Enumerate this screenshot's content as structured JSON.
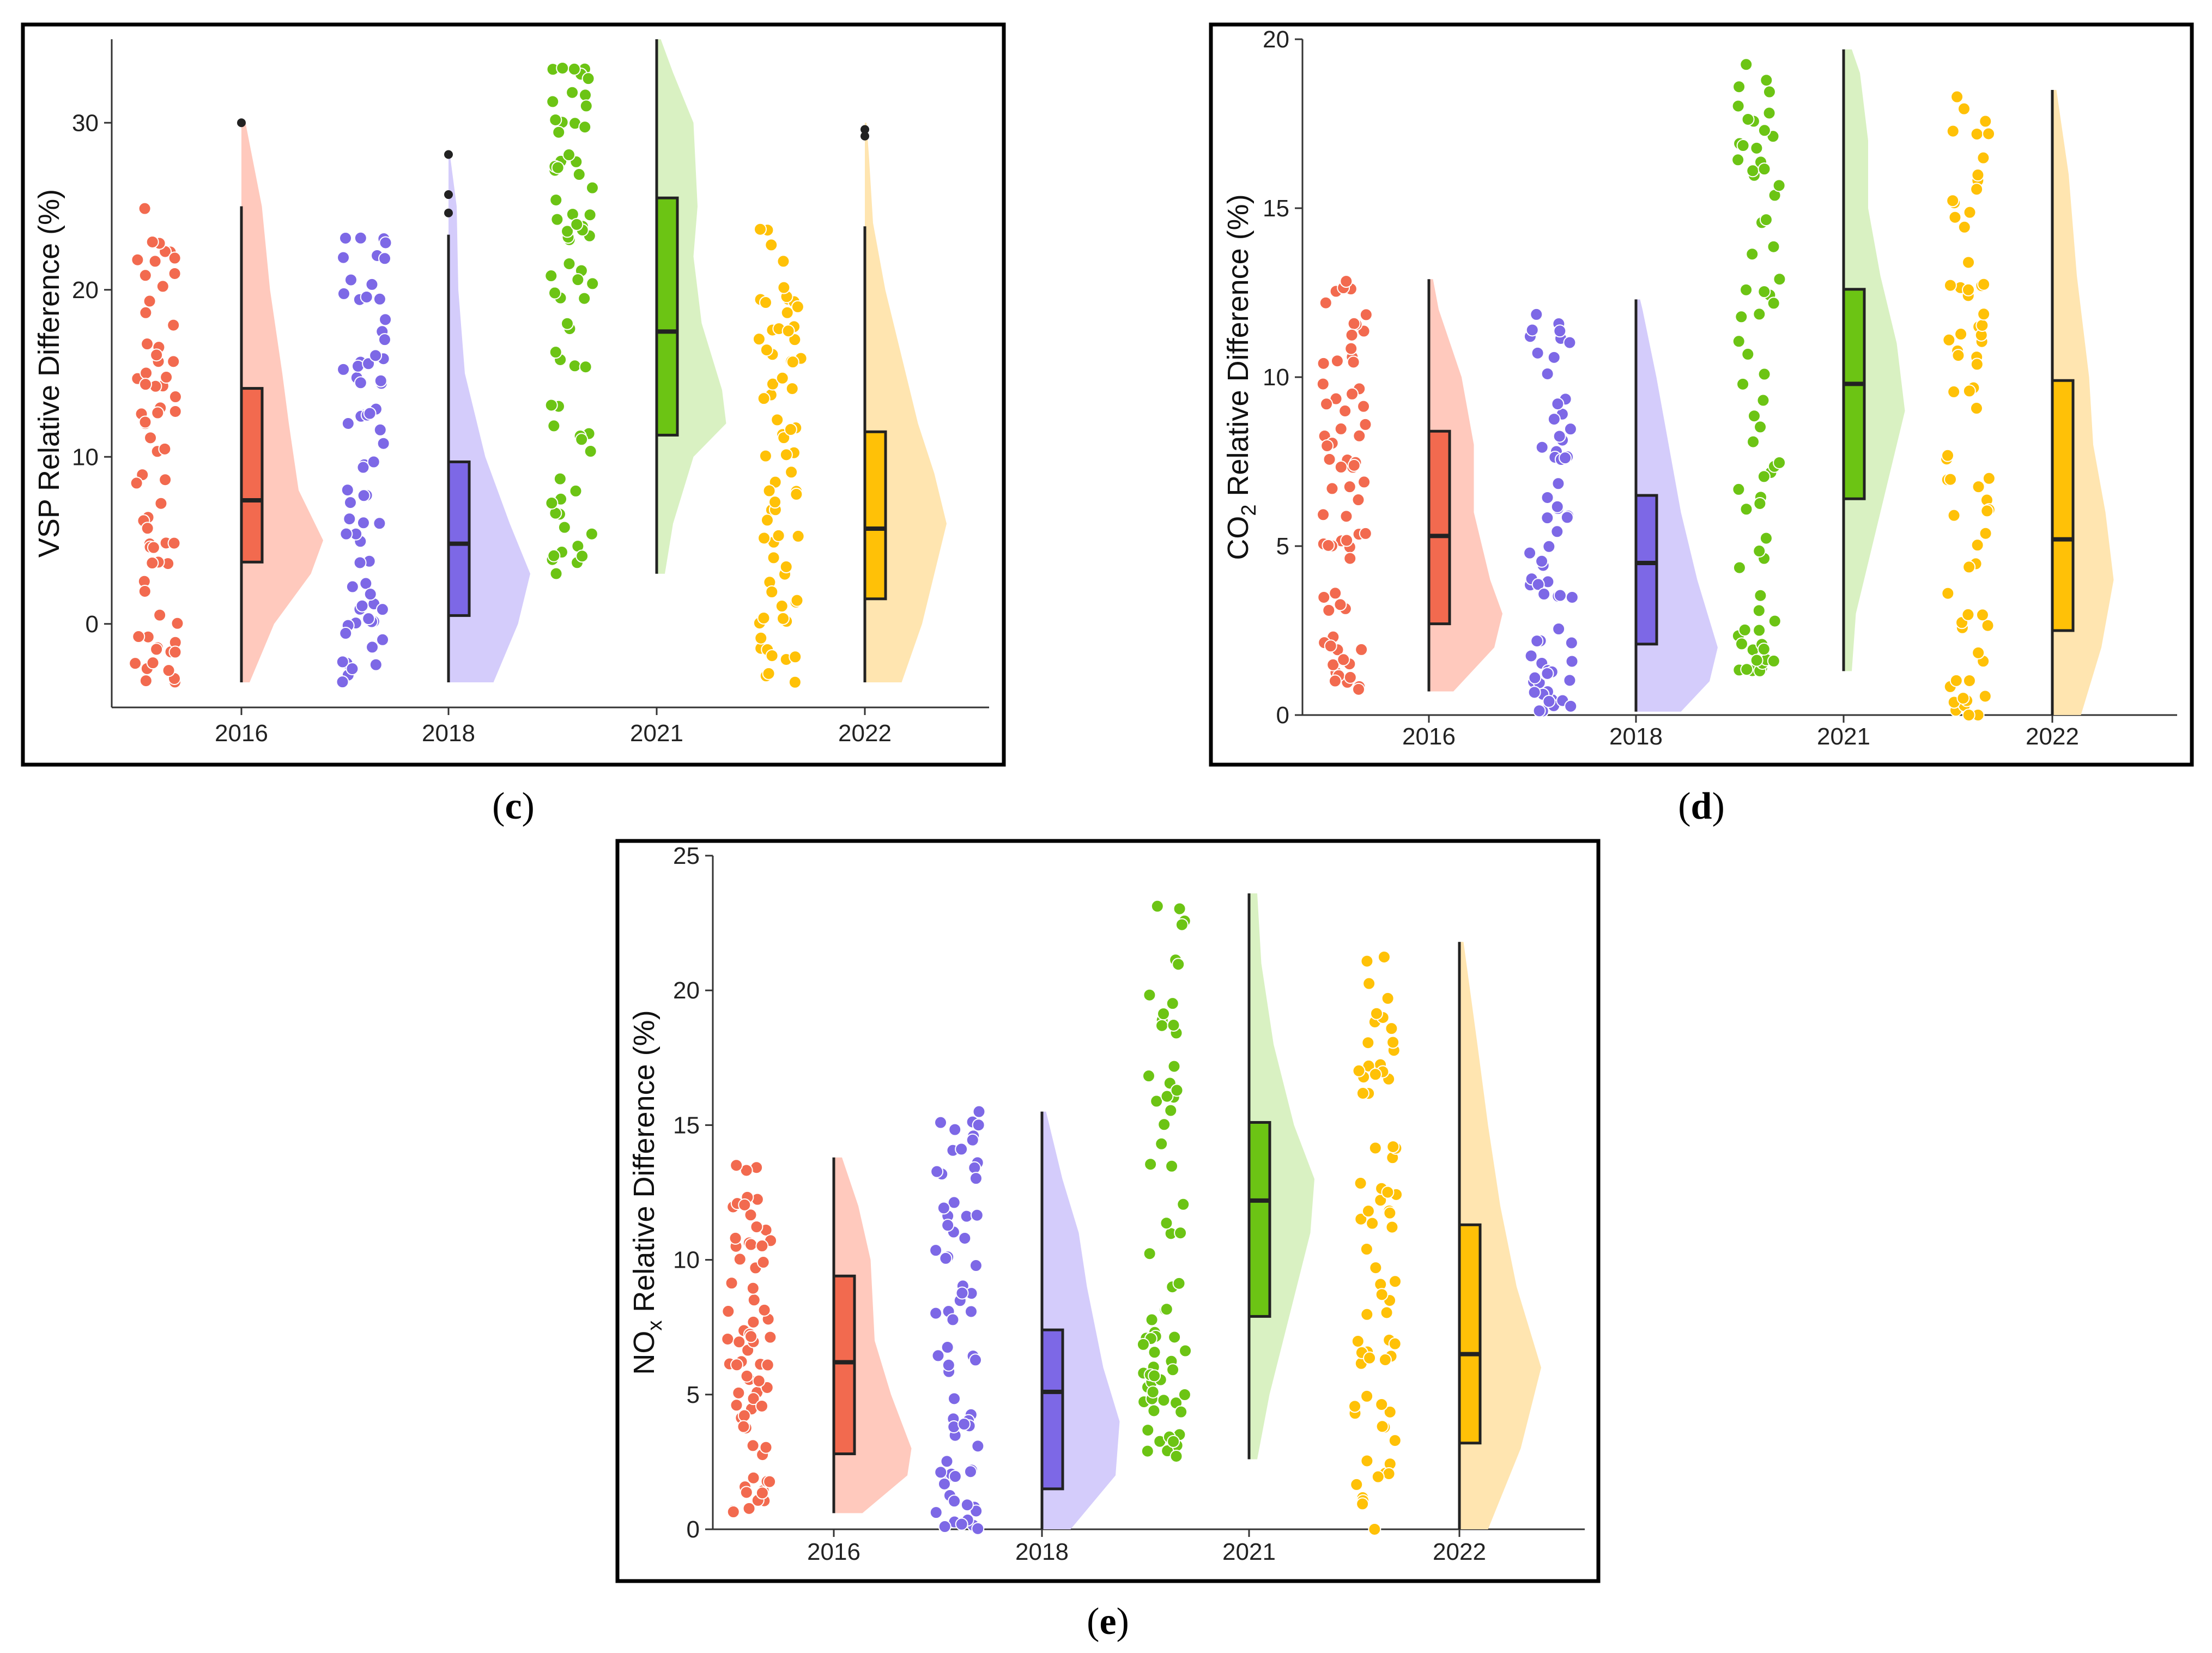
{
  "colors": {
    "2016": "#f26a4f",
    "2018": "#7d68e6",
    "2021": "#6cc414",
    "2022": "#ffc107",
    "2016_light": "#ffc9bd",
    "2018_light": "#d4ccfb",
    "2021_light": "#d9f1c2",
    "2022_light": "#ffe5b0"
  },
  "chart_data": [
    {
      "id": "c",
      "panel_label": "c",
      "type": "raincloud",
      "ylabel": "VSP Relative Difference (%)",
      "ylim": [
        -5,
        35
      ],
      "yticks": [
        0,
        10,
        20,
        30
      ],
      "categories": [
        "2016",
        "2018",
        "2021",
        "2022"
      ],
      "series": [
        {
          "name": "2016",
          "min": -3.5,
          "q1": 3.7,
          "median": 7.4,
          "q3": 14.1,
          "max": 25,
          "outliers": [
            30
          ],
          "density": [
            [
              -3.5,
              0.1
            ],
            [
              0,
              0.4
            ],
            [
              3,
              0.85
            ],
            [
              5,
              1.0
            ],
            [
              8,
              0.7
            ],
            [
              12,
              0.58
            ],
            [
              15,
              0.5
            ],
            [
              20,
              0.35
            ],
            [
              25,
              0.25
            ],
            [
              30,
              0.05
            ]
          ]
        },
        {
          "name": "2018",
          "min": -3.5,
          "q1": 0.5,
          "median": 4.8,
          "q3": 9.7,
          "max": 23.3,
          "outliers": [
            24.6,
            25.7,
            28.1
          ],
          "density": [
            [
              -3.5,
              0.55
            ],
            [
              0,
              0.85
            ],
            [
              3,
              1.0
            ],
            [
              6,
              0.75
            ],
            [
              10,
              0.45
            ],
            [
              15,
              0.2
            ],
            [
              20,
              0.12
            ],
            [
              25,
              0.1
            ],
            [
              28,
              0.02
            ]
          ]
        },
        {
          "name": "2021",
          "min": 3,
          "q1": 11.3,
          "median": 17.5,
          "q3": 25.5,
          "max": 35,
          "outliers": [],
          "density": [
            [
              3,
              0.1
            ],
            [
              6,
              0.2
            ],
            [
              10,
              0.45
            ],
            [
              12,
              0.85
            ],
            [
              14,
              0.8
            ],
            [
              18,
              0.55
            ],
            [
              22,
              0.45
            ],
            [
              25,
              0.5
            ],
            [
              30,
              0.45
            ],
            [
              33,
              0.2
            ],
            [
              35,
              0.05
            ]
          ]
        },
        {
          "name": "2022",
          "min": -3.5,
          "q1": 1.5,
          "median": 5.7,
          "q3": 11.5,
          "max": 23.8,
          "outliers": [
            29.2,
            29.6
          ],
          "density": [
            [
              -3.5,
              0.45
            ],
            [
              0,
              0.7
            ],
            [
              3,
              0.85
            ],
            [
              6,
              1.0
            ],
            [
              9,
              0.85
            ],
            [
              12,
              0.65
            ],
            [
              16,
              0.45
            ],
            [
              20,
              0.25
            ],
            [
              24,
              0.1
            ],
            [
              28,
              0.05
            ],
            [
              30,
              0.02
            ]
          ]
        }
      ]
    },
    {
      "id": "d",
      "panel_label": "d",
      "type": "raincloud",
      "ylabel_main": "CO",
      "ylabel_sub": "2",
      "ylabel_rest": " Relative Difference (%)",
      "ylim": [
        0,
        20
      ],
      "yticks": [
        0,
        5,
        10,
        15,
        20
      ],
      "categories": [
        "2016",
        "2018",
        "2021",
        "2022"
      ],
      "series": [
        {
          "name": "2016",
          "min": 0.7,
          "q1": 2.7,
          "median": 5.3,
          "q3": 8.4,
          "max": 12.9,
          "outliers": [],
          "density": [
            [
              0.7,
              0.3
            ],
            [
              2,
              0.8
            ],
            [
              3,
              0.9
            ],
            [
              4,
              0.75
            ],
            [
              6,
              0.55
            ],
            [
              8,
              0.55
            ],
            [
              10,
              0.4
            ],
            [
              12,
              0.12
            ],
            [
              12.9,
              0.05
            ]
          ]
        },
        {
          "name": "2018",
          "min": 0.1,
          "q1": 2.1,
          "median": 4.5,
          "q3": 6.5,
          "max": 12.3,
          "outliers": [],
          "density": [
            [
              0.1,
              0.55
            ],
            [
              1,
              0.9
            ],
            [
              2,
              1.0
            ],
            [
              4,
              0.75
            ],
            [
              6,
              0.55
            ],
            [
              8,
              0.4
            ],
            [
              10,
              0.25
            ],
            [
              12,
              0.08
            ],
            [
              12.3,
              0.05
            ]
          ]
        },
        {
          "name": "2021",
          "min": 1.3,
          "q1": 6.4,
          "median": 9.8,
          "q3": 12.6,
          "max": 19.7,
          "outliers": [],
          "density": [
            [
              1.3,
              0.1
            ],
            [
              3,
              0.15
            ],
            [
              5,
              0.35
            ],
            [
              7,
              0.55
            ],
            [
              9,
              0.75
            ],
            [
              11,
              0.65
            ],
            [
              13,
              0.45
            ],
            [
              15,
              0.3
            ],
            [
              17,
              0.3
            ],
            [
              19,
              0.2
            ],
            [
              19.7,
              0.1
            ]
          ]
        },
        {
          "name": "2022",
          "min": 0,
          "q1": 2.5,
          "median": 5.2,
          "q3": 9.9,
          "max": 18.5,
          "outliers": [],
          "density": [
            [
              0,
              0.35
            ],
            [
              2,
              0.6
            ],
            [
              4,
              0.75
            ],
            [
              6,
              0.65
            ],
            [
              8,
              0.5
            ],
            [
              10,
              0.45
            ],
            [
              13,
              0.3
            ],
            [
              16,
              0.2
            ],
            [
              18.5,
              0.05
            ]
          ]
        }
      ]
    },
    {
      "id": "e",
      "panel_label": "e",
      "type": "raincloud",
      "ylabel_main": "NO",
      "ylabel_sub": "x",
      "ylabel_rest": " Relative Difference (%)",
      "ylim": [
        0,
        25
      ],
      "yticks": [
        0,
        5,
        10,
        15,
        20,
        25
      ],
      "categories": [
        "2016",
        "2018",
        "2021",
        "2022"
      ],
      "series": [
        {
          "name": "2016",
          "min": 0.6,
          "q1": 2.8,
          "median": 6.2,
          "q3": 9.4,
          "max": 13.8,
          "outliers": [],
          "density": [
            [
              0.6,
              0.35
            ],
            [
              2,
              0.9
            ],
            [
              3,
              0.95
            ],
            [
              5,
              0.7
            ],
            [
              7,
              0.5
            ],
            [
              10,
              0.45
            ],
            [
              12,
              0.3
            ],
            [
              13.8,
              0.1
            ]
          ]
        },
        {
          "name": "2018",
          "min": 0,
          "q1": 1.5,
          "median": 5.1,
          "q3": 7.4,
          "max": 15.5,
          "outliers": [],
          "density": [
            [
              0,
              0.35
            ],
            [
              2,
              0.9
            ],
            [
              4,
              0.95
            ],
            [
              6,
              0.75
            ],
            [
              9,
              0.55
            ],
            [
              11,
              0.45
            ],
            [
              13,
              0.25
            ],
            [
              15.5,
              0.05
            ]
          ]
        },
        {
          "name": "2021",
          "min": 2.6,
          "q1": 7.9,
          "median": 12.2,
          "q3": 15.1,
          "max": 23.6,
          "outliers": [],
          "density": [
            [
              2.6,
              0.1
            ],
            [
              5,
              0.25
            ],
            [
              8,
              0.5
            ],
            [
              11,
              0.75
            ],
            [
              13,
              0.8
            ],
            [
              15,
              0.55
            ],
            [
              18,
              0.3
            ],
            [
              21,
              0.15
            ],
            [
              23.6,
              0.1
            ]
          ]
        },
        {
          "name": "2022",
          "min": 0,
          "q1": 3.2,
          "median": 6.5,
          "q3": 11.3,
          "max": 21.8,
          "outliers": [],
          "density": [
            [
              0,
              0.35
            ],
            [
              3,
              0.75
            ],
            [
              6,
              1.0
            ],
            [
              9,
              0.7
            ],
            [
              12,
              0.5
            ],
            [
              15,
              0.35
            ],
            [
              18,
              0.22
            ],
            [
              21.8,
              0.05
            ]
          ]
        }
      ]
    }
  ]
}
